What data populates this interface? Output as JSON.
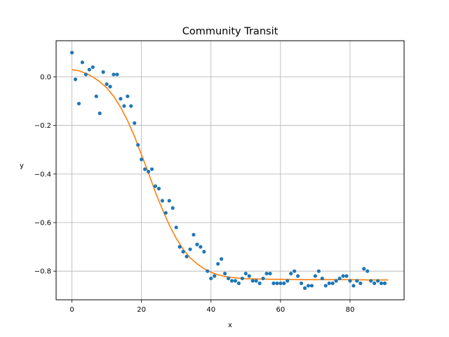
{
  "chart_data": {
    "type": "scatter",
    "title": "Community Transit",
    "xlabel": "x",
    "ylabel": "y",
    "xlim": [
      -4.55,
      95.55
    ],
    "ylim": [
      -0.918,
      0.149
    ],
    "xticks": [
      0,
      20,
      40,
      60,
      80
    ],
    "yticks": [
      0.0,
      -0.2,
      -0.4,
      -0.6,
      -0.8
    ],
    "xtick_labels": [
      "0",
      "20",
      "40",
      "60",
      "80"
    ],
    "ytick_labels": [
      "0.0",
      "−0.2",
      "−0.4",
      "−0.6",
      "−0.8"
    ],
    "grid": true,
    "colors": {
      "points": "#1f77b4",
      "fit": "#ff7f0e",
      "grid": "#b0b0b0",
      "axes": "#000000"
    },
    "series": [
      {
        "type": "scatter",
        "x": [
          0,
          1,
          2,
          3,
          4,
          5,
          6,
          7,
          8,
          9,
          10,
          11,
          12,
          13,
          14,
          15,
          16,
          17,
          18,
          19,
          20,
          21,
          22,
          23,
          24,
          25,
          26,
          27,
          28,
          29,
          30,
          31,
          32,
          33,
          34,
          35,
          36,
          37,
          38,
          39,
          40,
          41,
          42,
          43,
          44,
          45,
          46,
          47,
          48,
          49,
          50,
          51,
          52,
          53,
          54,
          55,
          56,
          57,
          58,
          59,
          60,
          61,
          62,
          63,
          64,
          65,
          66,
          67,
          68,
          69,
          70,
          71,
          72,
          73,
          74,
          75,
          76,
          77,
          78,
          79,
          80,
          81,
          82,
          83,
          84,
          85,
          86,
          87,
          88,
          89,
          90
        ],
        "y": [
          0.1,
          -0.01,
          -0.11,
          0.06,
          0.01,
          0.03,
          0.04,
          -0.08,
          -0.15,
          0.02,
          -0.03,
          -0.04,
          0.01,
          0.01,
          -0.09,
          -0.12,
          -0.08,
          -0.12,
          -0.19,
          -0.28,
          -0.34,
          -0.38,
          -0.39,
          -0.38,
          -0.45,
          -0.46,
          -0.51,
          -0.56,
          -0.51,
          -0.54,
          -0.62,
          -0.7,
          -0.72,
          -0.74,
          -0.71,
          -0.65,
          -0.69,
          -0.7,
          -0.72,
          -0.8,
          -0.83,
          -0.82,
          -0.77,
          -0.75,
          -0.81,
          -0.83,
          -0.84,
          -0.84,
          -0.85,
          -0.83,
          -0.81,
          -0.82,
          -0.84,
          -0.84,
          -0.85,
          -0.83,
          -0.81,
          -0.81,
          -0.85,
          -0.85,
          -0.85,
          -0.85,
          -0.84,
          -0.81,
          -0.8,
          -0.82,
          -0.85,
          -0.87,
          -0.86,
          -0.86,
          -0.82,
          -0.8,
          -0.83,
          -0.86,
          -0.85,
          -0.85,
          -0.84,
          -0.83,
          -0.82,
          -0.82,
          -0.84,
          -0.86,
          -0.84,
          -0.85,
          -0.79,
          -0.8,
          -0.84,
          -0.85,
          -0.84,
          -0.85,
          -0.85
        ]
      },
      {
        "type": "line",
        "x": [
          0,
          2,
          4,
          6,
          8,
          10,
          12,
          14,
          16,
          18,
          20,
          22,
          24,
          26,
          28,
          30,
          32,
          34,
          36,
          38,
          40,
          42,
          44,
          46,
          48,
          50,
          55,
          60,
          65,
          70,
          75,
          80,
          85,
          91
        ],
        "y": [
          0.03,
          0.025,
          0.015,
          0.0,
          -0.02,
          -0.045,
          -0.08,
          -0.125,
          -0.18,
          -0.245,
          -0.32,
          -0.395,
          -0.475,
          -0.545,
          -0.61,
          -0.665,
          -0.71,
          -0.745,
          -0.77,
          -0.79,
          -0.805,
          -0.815,
          -0.822,
          -0.826,
          -0.829,
          -0.831,
          -0.833,
          -0.834,
          -0.835,
          -0.835,
          -0.835,
          -0.835,
          -0.836,
          -0.836
        ]
      }
    ]
  }
}
